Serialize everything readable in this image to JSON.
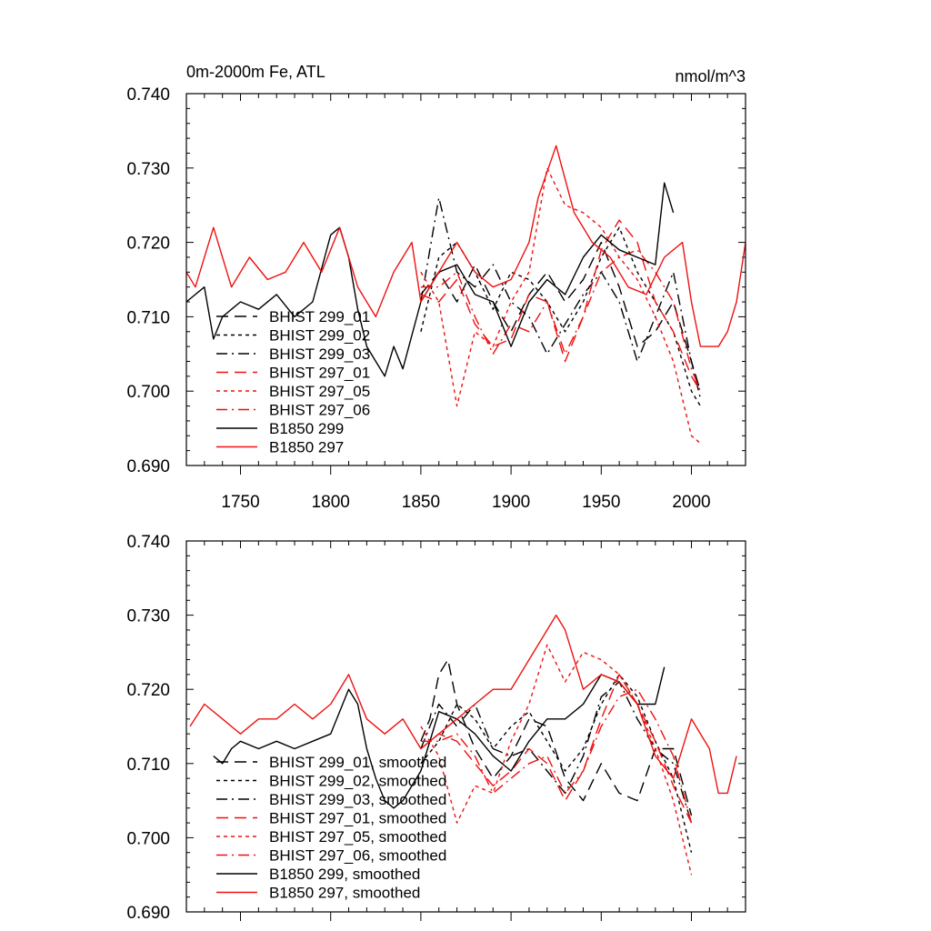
{
  "chart_data": [
    {
      "type": "line",
      "title": "0m-2000m Fe, ATL",
      "units": "nmol/m^3",
      "xlabel": "",
      "ylabel": "",
      "xlim": [
        1720,
        2030
      ],
      "ylim": [
        0.69,
        0.74
      ],
      "xticks": [
        1750,
        1800,
        1850,
        1900,
        1950,
        2000
      ],
      "xtick_labels": [
        "1750",
        "1800",
        "1850",
        "1900",
        "1950",
        "2000"
      ],
      "yticks": [
        0.69,
        0.7,
        0.71,
        0.72,
        0.73,
        0.74
      ],
      "ytick_labels": [
        "0.690",
        "0.700",
        "0.710",
        "0.720",
        "0.730",
        "0.740"
      ],
      "legend_position": "lower-left",
      "series": [
        {
          "name": "BHIST 299_01",
          "color": "#000000",
          "dash": "long-dash",
          "x": [
            1850,
            1860,
            1870,
            1880,
            1890,
            1900,
            1910,
            1920,
            1930,
            1940,
            1950,
            1960,
            1970,
            1980,
            1990,
            2000,
            2005
          ],
          "values": [
            0.713,
            0.716,
            0.712,
            0.717,
            0.712,
            0.708,
            0.713,
            0.716,
            0.712,
            0.715,
            0.72,
            0.714,
            0.706,
            0.708,
            0.712,
            0.704,
            0.7
          ]
        },
        {
          "name": "BHIST 299_02",
          "color": "#000000",
          "dash": "short-dash",
          "x": [
            1850,
            1860,
            1870,
            1880,
            1890,
            1900,
            1910,
            1920,
            1930,
            1940,
            1950,
            1960,
            1970,
            1980,
            1990,
            2000,
            2005
          ],
          "values": [
            0.708,
            0.718,
            0.72,
            0.716,
            0.711,
            0.716,
            0.715,
            0.712,
            0.708,
            0.712,
            0.718,
            0.722,
            0.716,
            0.712,
            0.708,
            0.7,
            0.698
          ]
        },
        {
          "name": "BHIST 299_03",
          "color": "#000000",
          "dash": "dash-dot",
          "x": [
            1850,
            1860,
            1870,
            1880,
            1890,
            1900,
            1910,
            1920,
            1930,
            1940,
            1950,
            1960,
            1970,
            1980,
            1990,
            2000,
            2005
          ],
          "values": [
            0.712,
            0.726,
            0.716,
            0.714,
            0.717,
            0.712,
            0.71,
            0.705,
            0.709,
            0.713,
            0.716,
            0.712,
            0.704,
            0.71,
            0.716,
            0.704,
            0.699
          ]
        },
        {
          "name": "BHIST 297_01",
          "color": "#ee1111",
          "dash": "long-dash",
          "x": [
            1850,
            1860,
            1870,
            1880,
            1890,
            1900,
            1910,
            1920,
            1930,
            1940,
            1950,
            1960,
            1970,
            1980,
            1990,
            2000,
            2005
          ],
          "values": [
            0.713,
            0.712,
            0.715,
            0.709,
            0.706,
            0.707,
            0.713,
            0.712,
            0.704,
            0.71,
            0.719,
            0.723,
            0.72,
            0.712,
            0.708,
            0.702,
            0.7
          ]
        },
        {
          "name": "BHIST 297_05",
          "color": "#ee1111",
          "dash": "short-dash",
          "x": [
            1850,
            1860,
            1870,
            1880,
            1890,
            1900,
            1910,
            1920,
            1930,
            1940,
            1950,
            1960,
            1970,
            1980,
            1990,
            2000,
            2005
          ],
          "values": [
            0.716,
            0.712,
            0.698,
            0.708,
            0.706,
            0.712,
            0.716,
            0.73,
            0.725,
            0.724,
            0.722,
            0.718,
            0.715,
            0.71,
            0.704,
            0.694,
            0.693
          ]
        },
        {
          "name": "BHIST 297_06",
          "color": "#ee1111",
          "dash": "dash-dot",
          "x": [
            1850,
            1860,
            1870,
            1880,
            1890,
            1900,
            1910,
            1920,
            1930,
            1940,
            1950,
            1960,
            1970,
            1980,
            1990,
            2000,
            2005
          ],
          "values": [
            0.714,
            0.714,
            0.716,
            0.71,
            0.705,
            0.709,
            0.708,
            0.712,
            0.705,
            0.71,
            0.716,
            0.718,
            0.719,
            0.716,
            0.712,
            0.703,
            0.7
          ]
        },
        {
          "name": "B1850 299",
          "color": "#000000",
          "dash": "solid",
          "x": [
            1720,
            1730,
            1735,
            1740,
            1750,
            1760,
            1770,
            1780,
            1790,
            1800,
            1805,
            1810,
            1815,
            1820,
            1825,
            1830,
            1835,
            1840,
            1850,
            1860,
            1870,
            1880,
            1890,
            1900,
            1910,
            1920,
            1930,
            1940,
            1950,
            1960,
            1970,
            1980,
            1985,
            1990
          ],
          "values": [
            0.712,
            0.714,
            0.707,
            0.71,
            0.712,
            0.711,
            0.713,
            0.71,
            0.712,
            0.721,
            0.722,
            0.718,
            0.711,
            0.706,
            0.704,
            0.702,
            0.706,
            0.703,
            0.712,
            0.716,
            0.717,
            0.713,
            0.712,
            0.706,
            0.712,
            0.715,
            0.713,
            0.718,
            0.721,
            0.719,
            0.718,
            0.717,
            0.728,
            0.724
          ]
        },
        {
          "name": "B1850 297",
          "color": "#ee1111",
          "dash": "solid",
          "x": [
            1720,
            1725,
            1735,
            1745,
            1755,
            1765,
            1775,
            1785,
            1795,
            1805,
            1815,
            1825,
            1835,
            1845,
            1850,
            1860,
            1870,
            1880,
            1890,
            1900,
            1910,
            1915,
            1925,
            1935,
            1945,
            1955,
            1965,
            1975,
            1985,
            1995,
            2000,
            2005,
            2015,
            2020,
            2025,
            2030
          ],
          "values": [
            0.716,
            0.714,
            0.722,
            0.714,
            0.718,
            0.715,
            0.716,
            0.72,
            0.716,
            0.722,
            0.714,
            0.71,
            0.716,
            0.72,
            0.712,
            0.716,
            0.72,
            0.716,
            0.714,
            0.715,
            0.72,
            0.726,
            0.733,
            0.724,
            0.72,
            0.718,
            0.714,
            0.713,
            0.718,
            0.72,
            0.712,
            0.706,
            0.706,
            0.708,
            0.712,
            0.72
          ]
        }
      ]
    },
    {
      "type": "line",
      "title": "",
      "xlabel": "",
      "ylabel": "",
      "xlim": [
        1720,
        2030
      ],
      "ylim": [
        0.69,
        0.74
      ],
      "xticks": [
        1750,
        1800,
        1850,
        1900,
        1950,
        2000
      ],
      "xtick_labels": [],
      "yticks": [
        0.69,
        0.7,
        0.71,
        0.72,
        0.73,
        0.74
      ],
      "ytick_labels": [
        "0.690",
        "0.700",
        "0.710",
        "0.720",
        "0.730",
        "0.740"
      ],
      "legend_position": "lower-left",
      "series": [
        {
          "name": "BHIST 299_01, smoothed",
          "color": "#000000",
          "dash": "long-dash",
          "x": [
            1850,
            1855,
            1860,
            1865,
            1870,
            1880,
            1890,
            1900,
            1910,
            1920,
            1930,
            1940,
            1950,
            1960,
            1970,
            1980,
            1990,
            2000
          ],
          "values": [
            0.713,
            0.716,
            0.722,
            0.724,
            0.718,
            0.712,
            0.708,
            0.711,
            0.716,
            0.715,
            0.708,
            0.705,
            0.71,
            0.706,
            0.705,
            0.712,
            0.712,
            0.703
          ]
        },
        {
          "name": "BHIST 299_02, smoothed",
          "color": "#000000",
          "dash": "short-dash",
          "x": [
            1850,
            1860,
            1870,
            1880,
            1890,
            1900,
            1910,
            1920,
            1930,
            1940,
            1950,
            1960,
            1970,
            1980,
            1990,
            2000
          ],
          "values": [
            0.71,
            0.713,
            0.718,
            0.716,
            0.712,
            0.715,
            0.717,
            0.713,
            0.709,
            0.712,
            0.718,
            0.722,
            0.719,
            0.713,
            0.708,
            0.698
          ]
        },
        {
          "name": "BHIST 299_03, smoothed",
          "color": "#000000",
          "dash": "dash-dot",
          "x": [
            1850,
            1860,
            1870,
            1880,
            1890,
            1900,
            1910,
            1920,
            1930,
            1940,
            1950,
            1960,
            1970,
            1980,
            1990,
            2000
          ],
          "values": [
            0.712,
            0.718,
            0.715,
            0.718,
            0.712,
            0.711,
            0.712,
            0.709,
            0.706,
            0.711,
            0.719,
            0.721,
            0.716,
            0.712,
            0.71,
            0.702
          ]
        },
        {
          "name": "BHIST 297_01, smoothed",
          "color": "#ee1111",
          "dash": "long-dash",
          "x": [
            1850,
            1860,
            1870,
            1880,
            1890,
            1900,
            1910,
            1920,
            1930,
            1940,
            1950,
            1960,
            1970,
            1980,
            1990,
            2000
          ],
          "values": [
            0.712,
            0.714,
            0.713,
            0.71,
            0.707,
            0.709,
            0.712,
            0.71,
            0.705,
            0.709,
            0.716,
            0.722,
            0.718,
            0.713,
            0.707,
            0.702
          ]
        },
        {
          "name": "BHIST 297_05, smoothed",
          "color": "#ee1111",
          "dash": "short-dash",
          "x": [
            1850,
            1860,
            1870,
            1880,
            1890,
            1900,
            1910,
            1920,
            1930,
            1940,
            1950,
            1960,
            1970,
            1980,
            1990,
            2000
          ],
          "values": [
            0.715,
            0.711,
            0.702,
            0.707,
            0.706,
            0.713,
            0.718,
            0.726,
            0.721,
            0.725,
            0.724,
            0.722,
            0.718,
            0.712,
            0.705,
            0.695
          ]
        },
        {
          "name": "BHIST 297_06, smoothed",
          "color": "#ee1111",
          "dash": "dash-dot",
          "x": [
            1850,
            1860,
            1870,
            1880,
            1890,
            1900,
            1910,
            1920,
            1930,
            1940,
            1950,
            1960,
            1970,
            1980,
            1990,
            2000
          ],
          "values": [
            0.713,
            0.713,
            0.714,
            0.711,
            0.706,
            0.708,
            0.71,
            0.711,
            0.706,
            0.709,
            0.715,
            0.719,
            0.72,
            0.716,
            0.711,
            0.702
          ]
        },
        {
          "name": "B1850 299, smoothed",
          "color": "#000000",
          "dash": "solid",
          "x": [
            1735,
            1740,
            1745,
            1750,
            1760,
            1770,
            1780,
            1790,
            1800,
            1810,
            1815,
            1820,
            1825,
            1830,
            1835,
            1840,
            1850,
            1860,
            1870,
            1880,
            1890,
            1900,
            1910,
            1920,
            1930,
            1940,
            1950,
            1960,
            1970,
            1980,
            1985
          ],
          "values": [
            0.711,
            0.71,
            0.712,
            0.713,
            0.712,
            0.713,
            0.712,
            0.713,
            0.714,
            0.72,
            0.718,
            0.712,
            0.708,
            0.705,
            0.704,
            0.705,
            0.709,
            0.717,
            0.716,
            0.714,
            0.711,
            0.709,
            0.713,
            0.716,
            0.716,
            0.718,
            0.722,
            0.721,
            0.718,
            0.718,
            0.723
          ]
        },
        {
          "name": "B1850 297, smoothed",
          "color": "#ee1111",
          "dash": "solid",
          "x": [
            1722,
            1730,
            1740,
            1750,
            1760,
            1770,
            1780,
            1790,
            1800,
            1810,
            1820,
            1830,
            1840,
            1850,
            1860,
            1870,
            1880,
            1890,
            1900,
            1910,
            1920,
            1925,
            1930,
            1940,
            1950,
            1960,
            1970,
            1980,
            1990,
            2000,
            2010,
            2015,
            2020,
            2025
          ],
          "values": [
            0.715,
            0.718,
            0.716,
            0.714,
            0.716,
            0.716,
            0.718,
            0.716,
            0.718,
            0.722,
            0.716,
            0.714,
            0.716,
            0.712,
            0.714,
            0.716,
            0.718,
            0.72,
            0.72,
            0.724,
            0.728,
            0.73,
            0.728,
            0.72,
            0.722,
            0.721,
            0.718,
            0.711,
            0.708,
            0.716,
            0.712,
            0.706,
            0.706,
            0.711
          ]
        }
      ]
    }
  ]
}
